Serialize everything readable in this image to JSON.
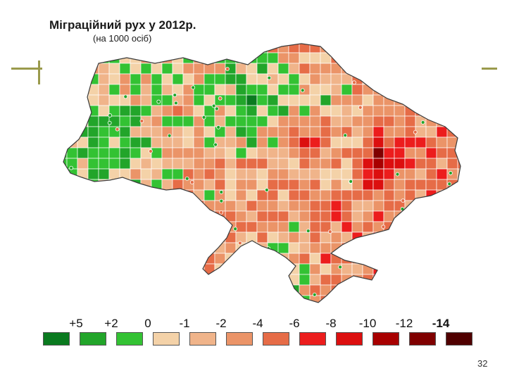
{
  "map": {
    "title": "Міграційний рух у 2012р.",
    "subtitle": "(на 1000 осіб)",
    "colors": {
      "ocean": "#ffffff",
      "border": "#ffffff",
      "outline": "#3a3a3a"
    }
  },
  "legend": {
    "labels": [
      "+5",
      "+2",
      "0",
      "-1",
      "-2",
      "-4",
      "-6",
      "-8",
      "-10",
      "-12",
      "-14"
    ],
    "bold_labels": [
      "-14"
    ],
    "swatches": [
      "#0a7a1f",
      "#22a52a",
      "#33c233",
      "#f4d2a8",
      "#f0b48a",
      "#eb9468",
      "#e66c47",
      "#ec1d1d",
      "#dc0f0f",
      "#a80000",
      "#800000",
      "#500000"
    ]
  },
  "page": {
    "number": "32"
  }
}
